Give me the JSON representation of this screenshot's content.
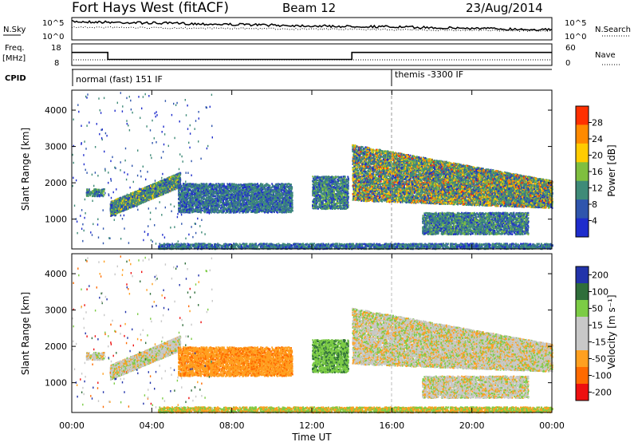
{
  "header": {
    "station": "Fort Hays West (fitACF)",
    "beam": "Beam 12",
    "date": "23/Aug/2014"
  },
  "strip_labels": {
    "nsky": "N.Sky",
    "nsearch": "N.Search",
    "freq": "Freq.",
    "freq_unit": "[MHz]",
    "nave": "Nave",
    "cpid": "CPID"
  },
  "cpid_segments": [
    {
      "label": "normal (fast) 151 IF",
      "start_hour": 0
    },
    {
      "label": "themis -3300 IF",
      "start_hour": 16
    }
  ],
  "chart_data": [
    {
      "type": "line",
      "name": "noise",
      "left_axis": {
        "label": "N.Sky",
        "ticks": [
          "10^5",
          "10^0"
        ]
      },
      "right_axis": {
        "label": "N.Search",
        "ticks": [
          "10^5",
          "10^0"
        ]
      },
      "xlim": [
        0,
        24
      ]
    },
    {
      "type": "line",
      "name": "frequency",
      "left_axis": {
        "label": "Freq. [MHz]",
        "ticks": [
          18,
          8
        ]
      },
      "right_axis": {
        "label": "Nave",
        "ticks": [
          60,
          0
        ]
      },
      "xlim": [
        0,
        24
      ],
      "freq_steps": [
        {
          "x": [
            0,
            1.8
          ],
          "y": 14.5
        },
        {
          "x": [
            1.8,
            14
          ],
          "y": 10.5
        },
        {
          "x": [
            14,
            24
          ],
          "y": 14.5
        }
      ]
    },
    {
      "type": "heatmap",
      "name": "power",
      "ylabel": "Slant Range [km]",
      "xlim": [
        0,
        24
      ],
      "ylim": [
        180,
        4550
      ],
      "yticks": [
        1000,
        2000,
        3000,
        4000
      ],
      "colorbar": {
        "label": "Power [dB]",
        "ticks": [
          4,
          8,
          12,
          16,
          20,
          24,
          28
        ],
        "range": [
          0,
          32
        ],
        "colors": [
          "#1e2ccc",
          "#2f55ad",
          "#3f8b78",
          "#7fbf3f",
          "#ffcc00",
          "#ff8a00",
          "#ff3000"
        ]
      }
    },
    {
      "type": "heatmap",
      "name": "velocity",
      "ylabel": "Slant Range [km]",
      "xlabel": "Time UT",
      "xlim": [
        0,
        24
      ],
      "ylim": [
        180,
        4550
      ],
      "xticks": [
        "00:00",
        "04:00",
        "08:00",
        "12:00",
        "16:00",
        "20:00",
        "00:00"
      ],
      "yticks": [
        1000,
        2000,
        3000,
        4000
      ],
      "colorbar": {
        "label": "Velocity [m s⁻¹]",
        "ticks": [
          200,
          100,
          50,
          15,
          -15,
          -50,
          -100,
          -200
        ],
        "colors": [
          "#2233aa",
          "#2f6e3a",
          "#7ccc45",
          "#c8c8c8",
          "#c8c8c8",
          "#ffa020",
          "#ff6a00",
          "#ee1010"
        ]
      }
    }
  ]
}
